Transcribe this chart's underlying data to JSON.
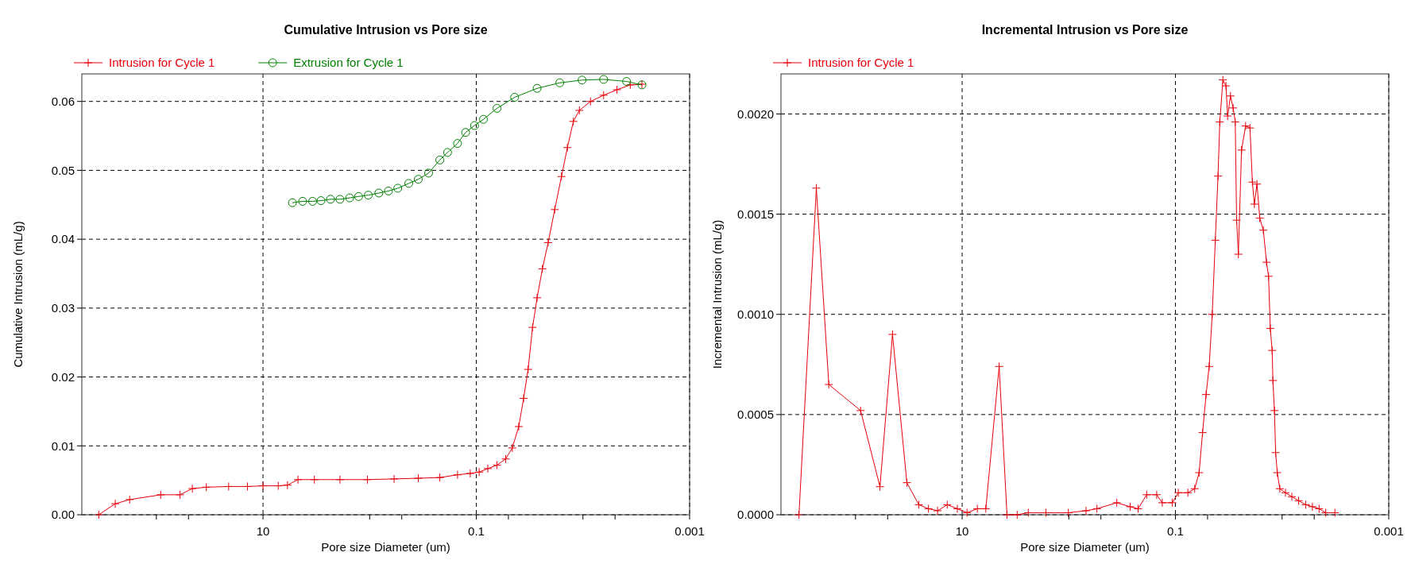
{
  "chart_data": [
    {
      "type": "line",
      "title": "Cumulative Intrusion vs Pore size",
      "xlabel": "Pore size Diameter (um)",
      "ylabel": "Cumulative Intrusion (mL/g)",
      "log": "x",
      "grid": true,
      "legend": "top left",
      "xlim": [
        500,
        0.001
      ],
      "xticks": [
        {
          "value": 100,
          "label": null
        },
        {
          "value": 50,
          "label": null
        },
        10,
        {
          "value": 1,
          "label": null
        },
        {
          "value": 0.5,
          "label": null
        },
        0.1,
        {
          "value": 0.05,
          "label": null
        },
        {
          "value": 0.01,
          "label": null
        },
        {
          "value": 0.005,
          "label": null
        },
        0.001
      ],
      "ylim": [
        0,
        0.064
      ],
      "yticks": [
        {
          "value": 0,
          "label": "0.00"
        },
        0.01,
        0.02,
        0.03,
        0.04,
        0.05,
        0.06
      ],
      "series": [
        {
          "name": "Intrusion for Cycle 1",
          "color": "#e8000b",
          "marker": "cross",
          "x": [
            347,
            243,
            178,
            91,
            60,
            46,
            34,
            21,
            14,
            10,
            7.2,
            5.9,
            4.7,
            3.3,
            1.9,
            1.05,
            0.59,
            0.35,
            0.22,
            0.15,
            0.114,
            0.094,
            0.078,
            0.064,
            0.053,
            0.046,
            0.04,
            0.036,
            0.0327,
            0.0297,
            0.0269,
            0.024,
            0.0212,
            0.0184,
            0.0159,
            0.014,
            0.0123,
            0.0108,
            0.0085,
            0.0064,
            0.0048,
            0.0036,
            0.0028
          ],
          "values": [
            0,
            0.0016,
            0.0022,
            0.0029,
            0.0029,
            0.0038,
            0.004,
            0.0041,
            0.0041,
            0.0042,
            0.0042,
            0.0043,
            0.0051,
            0.0051,
            0.0051,
            0.0051,
            0.0052,
            0.0053,
            0.0054,
            0.0058,
            0.006,
            0.0062,
            0.0067,
            0.0072,
            0.0081,
            0.0097,
            0.0128,
            0.0169,
            0.0211,
            0.0272,
            0.0315,
            0.0357,
            0.0395,
            0.0443,
            0.0491,
            0.0533,
            0.0571,
            0.0587,
            0.06,
            0.0609,
            0.0617,
            0.0624,
            0.0625
          ]
        },
        {
          "name": "Extrusion for Cycle 1",
          "color": "#008000",
          "marker": "circle",
          "x": [
            0.0028,
            0.0039,
            0.0064,
            0.0102,
            0.0165,
            0.0269,
            0.0437,
            0.064,
            0.0857,
            0.104,
            0.126,
            0.15,
            0.186,
            0.22,
            0.28,
            0.35,
            0.43,
            0.545,
            0.667,
            0.82,
            1.03,
            1.27,
            1.54,
            1.9,
            2.33,
            2.86,
            3.43,
            4.25,
            5.3
          ],
          "values": [
            0.0624,
            0.0629,
            0.0632,
            0.0631,
            0.0627,
            0.0619,
            0.0606,
            0.059,
            0.0574,
            0.0565,
            0.0555,
            0.0539,
            0.0526,
            0.0515,
            0.0496,
            0.0487,
            0.0481,
            0.0474,
            0.047,
            0.0467,
            0.0464,
            0.0462,
            0.046,
            0.0458,
            0.0458,
            0.0456,
            0.0455,
            0.0455,
            0.0453
          ]
        }
      ]
    },
    {
      "type": "line",
      "title": "Incremental Intrusion vs Pore size",
      "xlabel": "Pore size Diameter (um)",
      "ylabel": "Incremental Intrusion (mL/g)",
      "log": "x",
      "grid": true,
      "legend": "top left",
      "xlim": [
        500,
        0.001
      ],
      "xticks": [
        {
          "value": 100,
          "label": null
        },
        {
          "value": 50,
          "label": null
        },
        10,
        {
          "value": 1,
          "label": null
        },
        {
          "value": 0.5,
          "label": null
        },
        0.1,
        {
          "value": 0.05,
          "label": null
        },
        {
          "value": 0.01,
          "label": null
        },
        {
          "value": 0.005,
          "label": null
        },
        0.001
      ],
      "ylim": [
        0,
        0.0022
      ],
      "yticks": [
        {
          "value": 0,
          "label": "0.0000"
        },
        0.0005,
        {
          "value": 0.001,
          "label": "0.0010"
        },
        {
          "value": 0.0015,
          "label": "0.0015"
        },
        {
          "value": 0.002,
          "label": "0.0020"
        }
      ],
      "series": [
        {
          "name": "Intrusion for Cycle 1",
          "color": "#e8000b",
          "marker": "cross",
          "x": [
            339,
            233,
            178,
            89.6,
            59,
            45,
            33,
            25.5,
            20.7,
            17,
            13.8,
            11.1,
            9,
            7.2,
            6,
            4.5,
            3.8,
            3.05,
            2.4,
            1.64,
            1.01,
            0.69,
            0.545,
            0.355,
            0.266,
            0.224,
            0.186,
            0.15,
            0.133,
            0.107,
            0.094,
            0.0765,
            0.066,
            0.06,
            0.0557,
            0.0516,
            0.0483,
            0.0452,
            0.0423,
            0.0399,
            0.0384,
            0.0359,
            0.0336,
            0.0324,
            0.0305,
            0.0288,
            0.0275,
            0.0267,
            0.0257,
            0.024,
            0.022,
            0.02,
            0.019,
            0.0182,
            0.0172,
            0.0162,
            0.015,
            0.014,
            0.0134,
            0.0129,
            0.0124,
            0.0122,
            0.0118,
            0.0115,
            0.0111,
            0.0105,
            0.0093,
            0.0081,
            0.007,
            0.006,
            0.0052,
            0.0045,
            0.0039,
            0.0032
          ],
          "values": [
            0,
            0.00163,
            0.00065,
            0.00052,
            0.00014,
            0.0009,
            0.00016,
            5e-05,
            3e-05,
            2e-05,
            5e-05,
            3e-05,
            1e-05,
            3e-05,
            3e-05,
            0.00074,
            0,
            0,
            1e-05,
            1e-05,
            1e-05,
            2e-05,
            3e-05,
            6e-05,
            4e-05,
            3e-05,
            0.0001,
            0.0001,
            6e-05,
            6e-05,
            0.00011,
            0.00011,
            0.00013,
            0.00021,
            0.00041,
            0.0006,
            0.00074,
            0.001,
            0.00137,
            0.00169,
            0.00196,
            0.00217,
            0.00214,
            0.00199,
            0.00209,
            0.00203,
            0.00196,
            0.00147,
            0.0013,
            0.00182,
            0.00194,
            0.00193,
            0.00166,
            0.00155,
            0.00165,
            0.00148,
            0.00142,
            0.00126,
            0.00119,
            0.00093,
            0.00082,
            0.00067,
            0.00052,
            0.00031,
            0.00021,
            0.00013,
            0.00011,
            9e-05,
            7e-05,
            5e-05,
            4e-05,
            3e-05,
            1e-05,
            1e-05
          ]
        }
      ]
    }
  ]
}
